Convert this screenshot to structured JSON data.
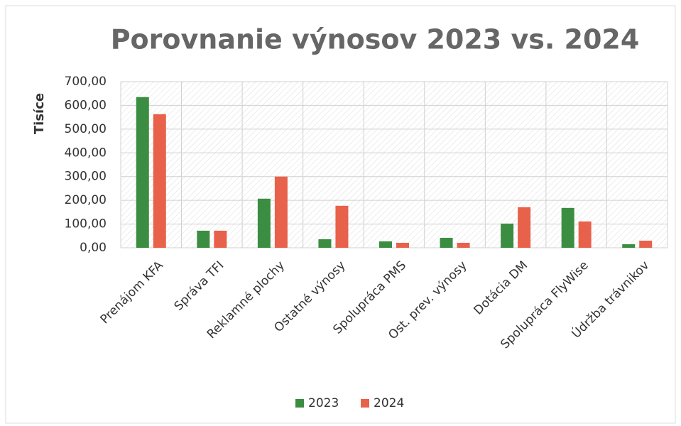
{
  "chart_data": {
    "type": "bar",
    "title": "Porovnanie výnosov 2023 vs. 2024",
    "y_label": "Tisíce",
    "categories": [
      "Prenájom KFA",
      "Správa TFI",
      "Reklamné plochy",
      "Ostatné výnosy",
      "Spolupráca PMS",
      "Ost. prev. výnosy",
      "Dotácia DM",
      "Spolupráca FlyWise",
      "Údržba trávnikov"
    ],
    "series": [
      {
        "name": "2023",
        "color": "#3b8d42",
        "values": [
          635,
          72,
          207,
          36,
          27,
          42,
          102,
          168,
          15
        ]
      },
      {
        "name": "2024",
        "color": "#e8614b",
        "values": [
          563,
          72,
          300,
          177,
          21,
          21,
          171,
          111,
          30
        ]
      }
    ],
    "ylim": [
      0,
      700
    ],
    "yticks": [
      {
        "value": 0,
        "label": "0,00"
      },
      {
        "value": 100,
        "label": "100,00"
      },
      {
        "value": 200,
        "label": "200,00"
      },
      {
        "value": 300,
        "label": "300,00"
      },
      {
        "value": 400,
        "label": "400,00"
      },
      {
        "value": 500,
        "label": "500,00"
      },
      {
        "value": 600,
        "label": "600,00"
      },
      {
        "value": 700,
        "label": "700,00"
      }
    ],
    "grid": true,
    "legend": "bottom"
  }
}
